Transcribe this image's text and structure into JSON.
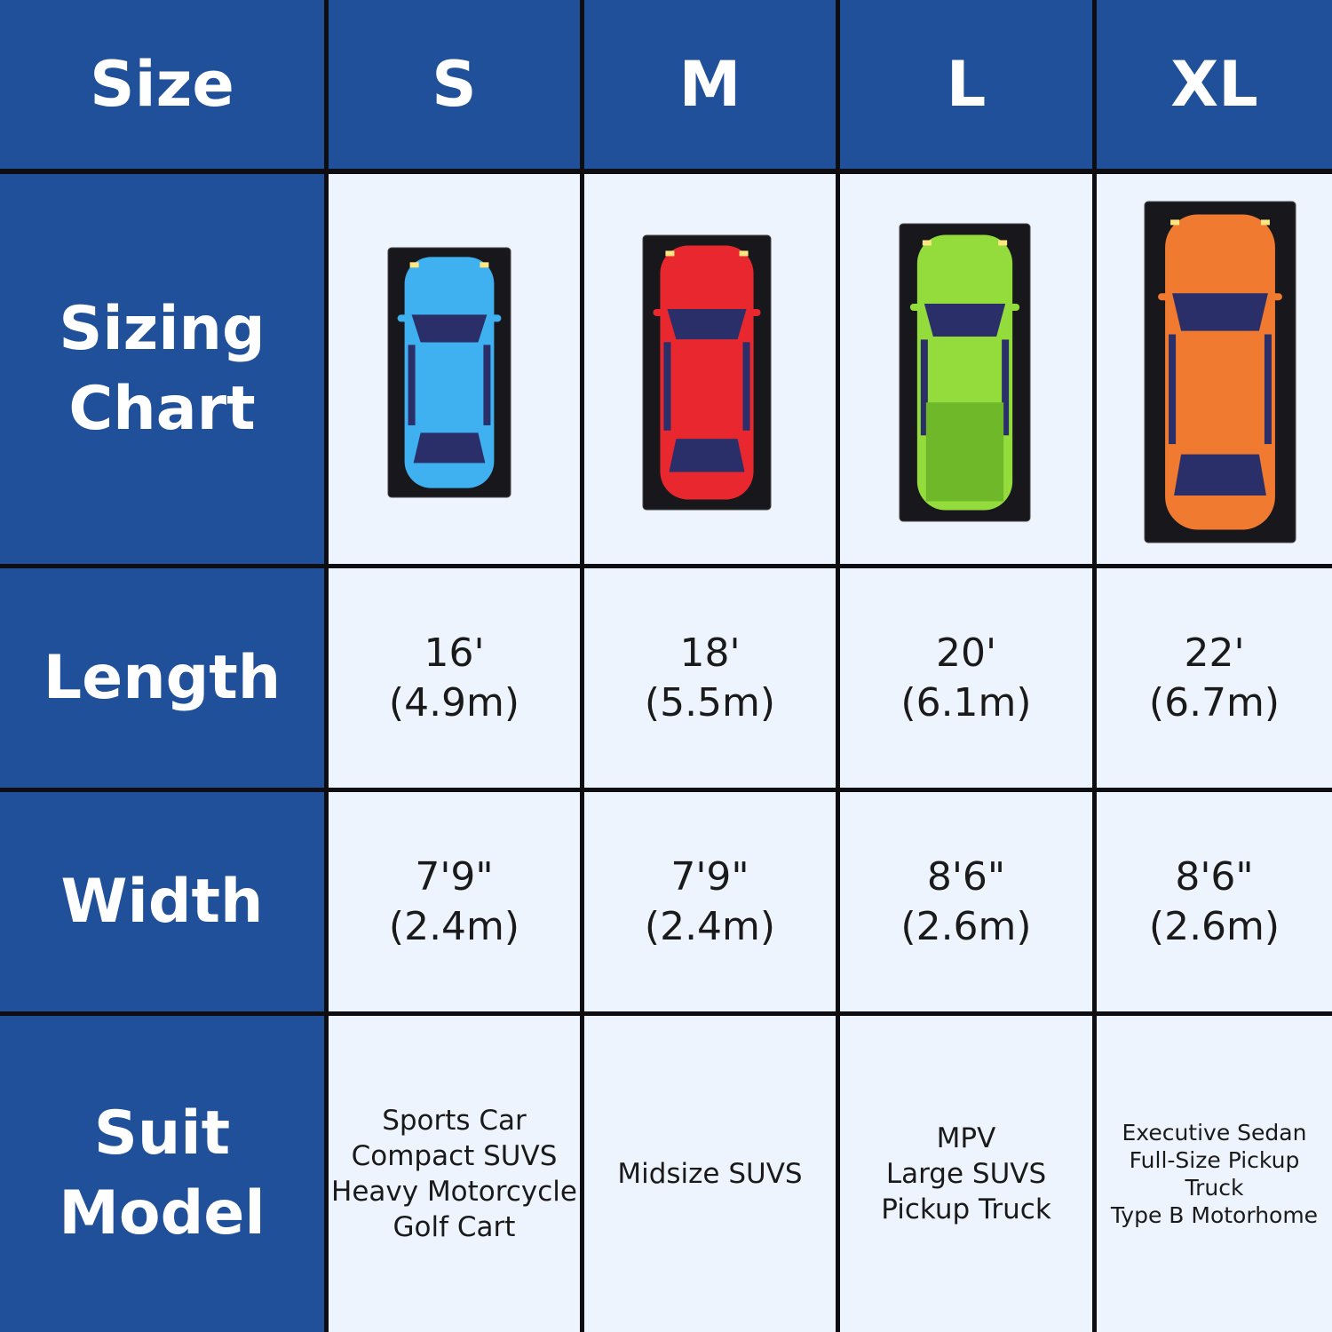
{
  "header": {
    "label": "Size",
    "sizes": [
      "S",
      "M",
      "L",
      "XL"
    ]
  },
  "rows": {
    "sizing_chart": {
      "label": "Sizing Chart",
      "car_colors": [
        "#3fb1f0",
        "#e8282e",
        "#93dc3c",
        "#f07a30"
      ],
      "window_color": "#2a2f6a"
    },
    "length": {
      "label": "Length",
      "values": [
        [
          "16'",
          "(4.9m)"
        ],
        [
          "18'",
          "(5.5m)"
        ],
        [
          "20'",
          "(6.1m)"
        ],
        [
          "22'",
          "(6.7m)"
        ]
      ]
    },
    "width": {
      "label": "Width",
      "values": [
        [
          "7'9\"",
          "(2.4m)"
        ],
        [
          "7'9\"",
          "(2.4m)"
        ],
        [
          "8'6\"",
          "(2.6m)"
        ],
        [
          "8'6\"",
          "(2.6m)"
        ]
      ]
    },
    "suit_model": {
      "label": "Suit Model",
      "values": [
        [
          "Sports Car",
          "Compact SUVS",
          "Heavy Motorcycle",
          "Golf Cart"
        ],
        [
          "Midsize SUVS"
        ],
        [
          "MPV",
          "Large SUVS",
          "Pickup Truck"
        ],
        [
          "Executive Sedan",
          "Full-Size Pickup Truck",
          "Type B Motorhome"
        ]
      ]
    }
  },
  "colors": {
    "header_blue": "#21509a",
    "cell_bg": "#eef4fd",
    "grid": "#0d0d12"
  }
}
